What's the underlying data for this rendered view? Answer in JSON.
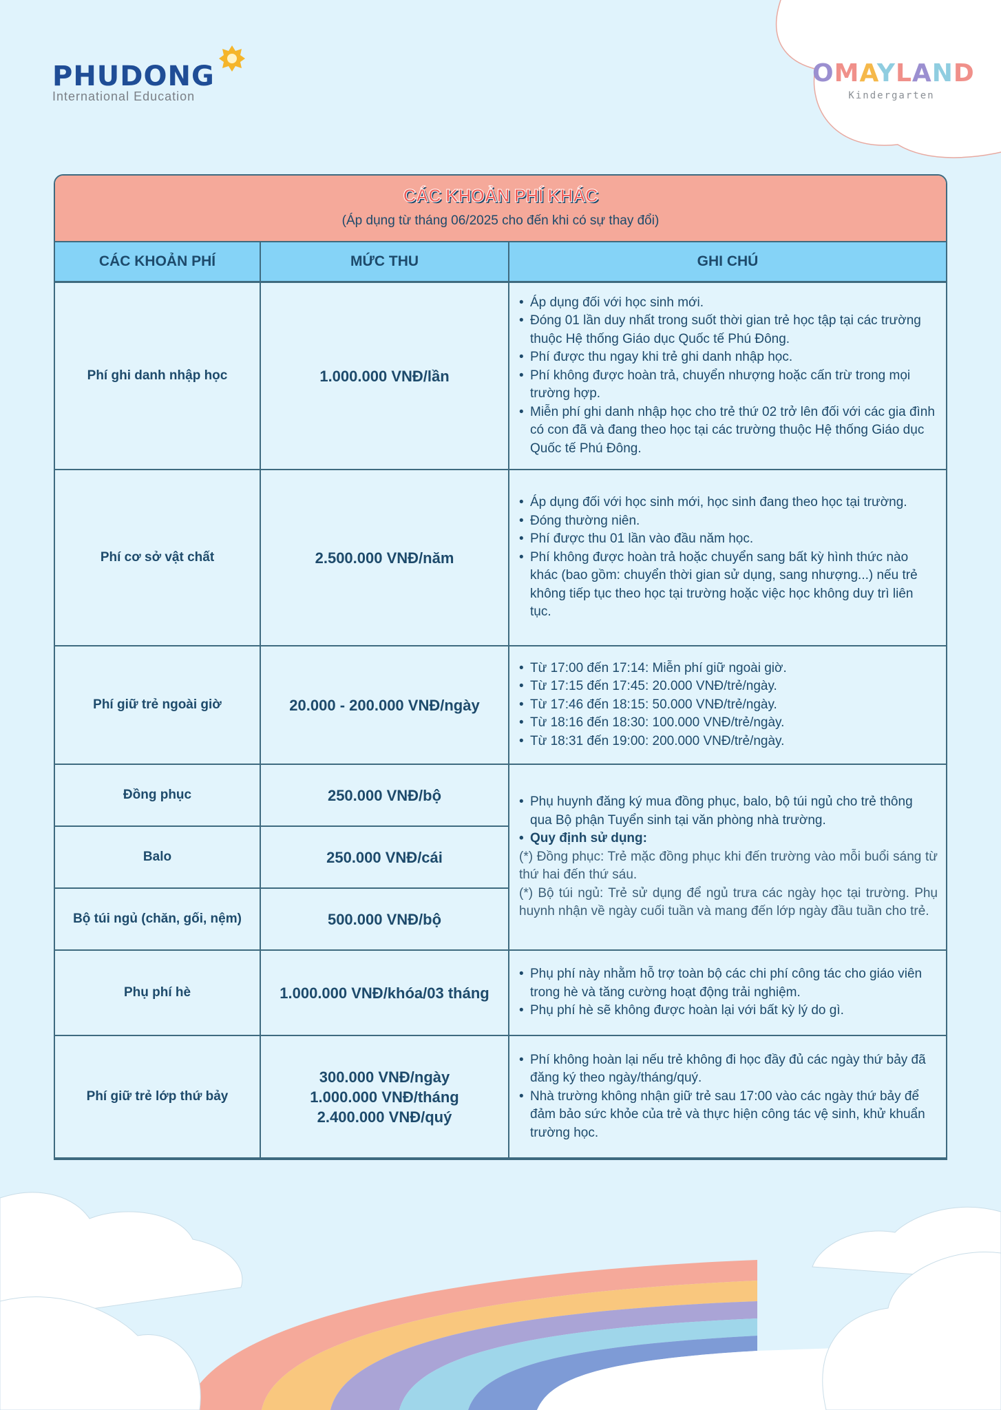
{
  "header": {
    "left_logo": {
      "brand": "PHUDONG",
      "subtitle": "International Education"
    },
    "right_logo": {
      "brand": "OMAYLAND",
      "subtitle": "Kindergarten"
    }
  },
  "table": {
    "title": "CÁC KHOẢN PHÍ KHÁC",
    "subtitle": "(Áp dụng từ tháng 06/2025 cho đến khi có sự thay đổi)",
    "columns": [
      "CÁC KHOẢN PHÍ",
      "MỨC THU",
      "GHI CHÚ"
    ],
    "rows": [
      {
        "name": "Phí ghi danh nhập học",
        "price": "1.000.000 VNĐ/lần",
        "notes": [
          "Áp dụng đối với học sinh mới.",
          "Đóng 01 lần duy nhất trong suốt thời gian trẻ học tập tại các trường thuộc Hệ thống Giáo dục Quốc tế Phú Đông.",
          "Phí được thu ngay khi trẻ ghi danh nhập học.",
          "Phí không được hoàn trả, chuyển nhượng hoặc cấn trừ trong mọi trường hợp.",
          "Miễn phí ghi danh nhập học cho trẻ thứ 02 trở lên đối với các gia đình có con đã và đang theo học tại các trường thuộc Hệ thống Giáo dục Quốc tế Phú Đông."
        ]
      },
      {
        "name": "Phí cơ sở vật chất",
        "price": "2.500.000 VNĐ/năm",
        "notes": [
          "Áp dụng đối với học sinh mới, học sinh đang theo học tại trường.",
          "Đóng thường niên.",
          "Phí được thu 01 lần vào đầu năm học.",
          "Phí không được hoàn trả hoặc chuyển sang bất kỳ hình thức nào khác (bao gồm: chuyển thời gian sử dụng, sang nhượng...) nếu trẻ không tiếp tục theo học tại trường hoặc việc học không duy trì liên tục."
        ]
      },
      {
        "name": "Phí giữ trẻ ngoài giờ",
        "price": "20.000 - 200.000 VNĐ/ngày",
        "notes": [
          "Từ 17:00 đến 17:14: Miễn phí giữ ngoài giờ.",
          "Từ 17:15 đến 17:45: 20.000 VNĐ/trẻ/ngày.",
          "Từ 17:46 đến 18:15: 50.000 VNĐ/trẻ/ngày.",
          "Từ 18:16 đến 18:30: 100.000 VNĐ/trẻ/ngày.",
          "Từ 18:31 đến 19:00: 200.000 VNĐ/trẻ/ngày."
        ]
      }
    ],
    "supplies": {
      "items": [
        {
          "name": "Đồng phục",
          "price": "250.000 VNĐ/bộ"
        },
        {
          "name": "Balo",
          "price": "250.000 VNĐ/cái"
        },
        {
          "name": "Bộ túi ngủ (chăn, gối, nệm)",
          "price": "500.000 VNĐ/bộ"
        }
      ],
      "notes": {
        "bullet": "Phụ huynh đăng ký mua đồng phục, balo, bộ túi ngủ cho trẻ thông qua Bộ phận Tuyển sinh tại văn phòng nhà trường.",
        "rules_heading": "Quy định sử dụng:",
        "rule_uniform": "(*) Đồng phục: Trẻ mặc đồng phục khi đến trường vào mỗi buổi sáng từ thứ hai đến thứ sáu.",
        "rule_sleeping": "(*) Bộ túi ngủ: Trẻ sử dụng để ngủ trưa các ngày học tại trường. Phụ huynh nhận về ngày cuối tuần và mang đến lớp ngày đầu tuần cho trẻ."
      }
    },
    "rows_after": [
      {
        "name": "Phụ phí hè",
        "prices": [
          "1.000.000 VNĐ/khóa/03 tháng"
        ],
        "notes": [
          "Phụ phí này nhằm hỗ trợ toàn bộ các chi phí công tác cho giáo viên trong hè và tăng cường hoạt động trải nghiệm.",
          "Phụ phí hè sẽ không được hoàn lại với bất kỳ lý do gì."
        ]
      },
      {
        "name": "Phí giữ trẻ lớp thứ bảy",
        "prices": [
          "300.000 VNĐ/ngày",
          "1.000.000 VNĐ/tháng",
          "2.400.000 VNĐ/quý"
        ],
        "notes": [
          "Phí không hoàn lại nếu trẻ không đi học đầy đủ các ngày thứ bảy đã đăng ký theo ngày/tháng/quý.",
          "Nhà trường không nhận giữ trẻ sau 17:00 vào các ngày thứ bảy để đảm bảo sức khỏe của trẻ và thực hiện công tác vệ sinh, khử khuẩn trường học."
        ]
      }
    ]
  },
  "colors": {
    "background": "#e0f3fc",
    "title_bg": "#f5a99a",
    "header_bg": "#85d3f7",
    "text": "#1d4a6b",
    "border": "#3e6a7f"
  }
}
